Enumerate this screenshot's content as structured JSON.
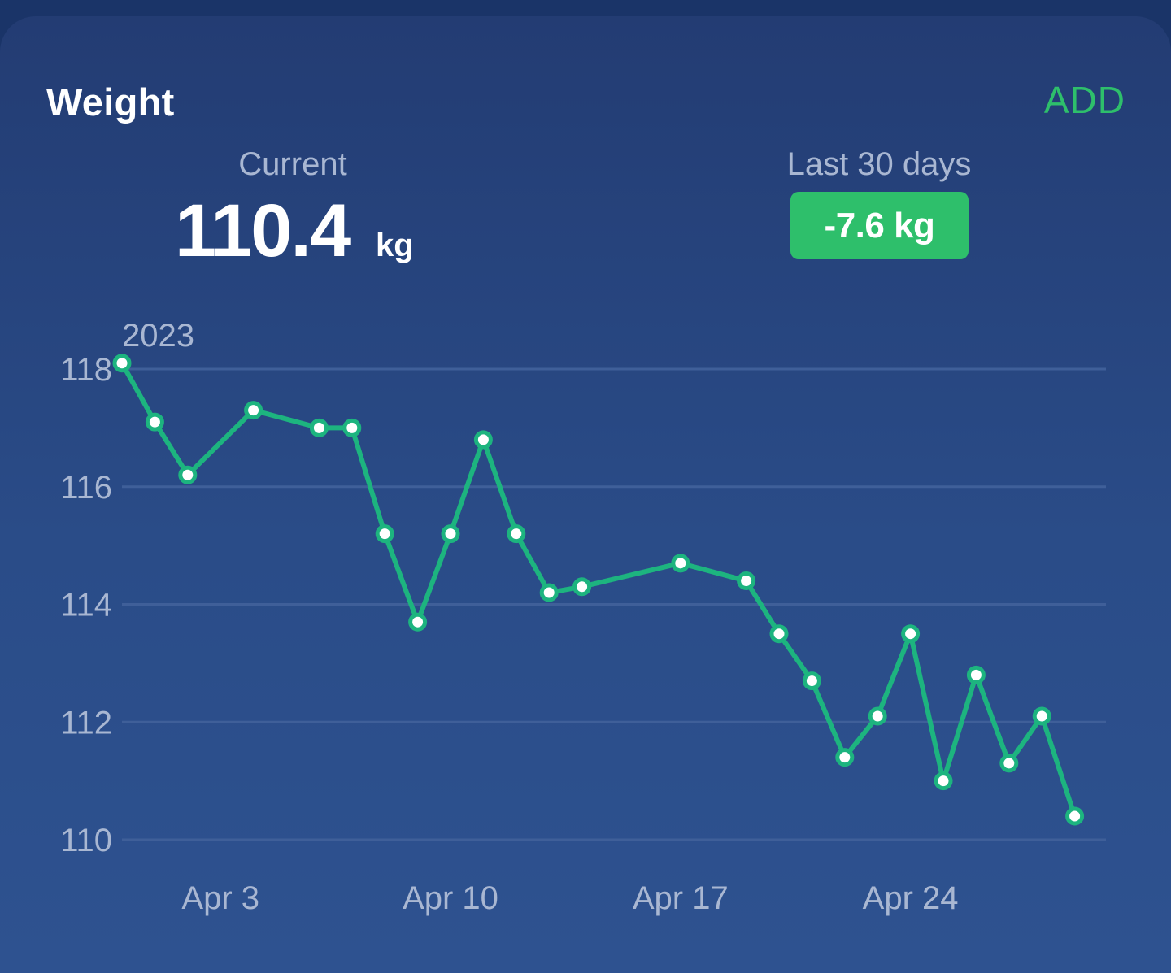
{
  "card": {
    "title": "Weight",
    "add_label": "ADD"
  },
  "summary": {
    "current_label": "Current",
    "current_value": "110.4",
    "current_unit": "kg",
    "period_label": "Last 30 days",
    "change": "-7.6 kg"
  },
  "colors": {
    "accent": "#2ebf6b",
    "line": "#1db47f",
    "background": "#2a4a86"
  },
  "chart_data": {
    "type": "line",
    "year_label": "2023",
    "y_ticks": [
      118,
      116,
      114,
      112,
      110
    ],
    "ylim": [
      110,
      118
    ],
    "x_ticks": [
      {
        "day": 3,
        "label": "Apr 3"
      },
      {
        "day": 10,
        "label": "Apr 10"
      },
      {
        "day": 17,
        "label": "Apr 17"
      },
      {
        "day": 24,
        "label": "Apr 24"
      }
    ],
    "series": [
      {
        "points": [
          {
            "day": 0,
            "value": 118.1
          },
          {
            "day": 1,
            "value": 117.1
          },
          {
            "day": 2,
            "value": 116.2
          },
          {
            "day": 4,
            "value": 117.3
          },
          {
            "day": 6,
            "value": 117.0
          },
          {
            "day": 7,
            "value": 117.0
          },
          {
            "day": 8,
            "value": 115.2
          },
          {
            "day": 9,
            "value": 113.7
          },
          {
            "day": 10,
            "value": 115.2
          },
          {
            "day": 11,
            "value": 116.8
          },
          {
            "day": 12,
            "value": 115.2
          },
          {
            "day": 13,
            "value": 114.2
          },
          {
            "day": 14,
            "value": 114.3
          },
          {
            "day": 17,
            "value": 114.7
          },
          {
            "day": 19,
            "value": 114.4
          },
          {
            "day": 20,
            "value": 113.5
          },
          {
            "day": 21,
            "value": 112.7
          },
          {
            "day": 22,
            "value": 111.4
          },
          {
            "day": 23,
            "value": 112.1
          },
          {
            "day": 24,
            "value": 113.5
          },
          {
            "day": 25,
            "value": 111.0
          },
          {
            "day": 26,
            "value": 112.8
          },
          {
            "day": 27,
            "value": 111.3
          },
          {
            "day": 28,
            "value": 112.1
          },
          {
            "day": 29,
            "value": 110.4
          }
        ]
      }
    ]
  }
}
